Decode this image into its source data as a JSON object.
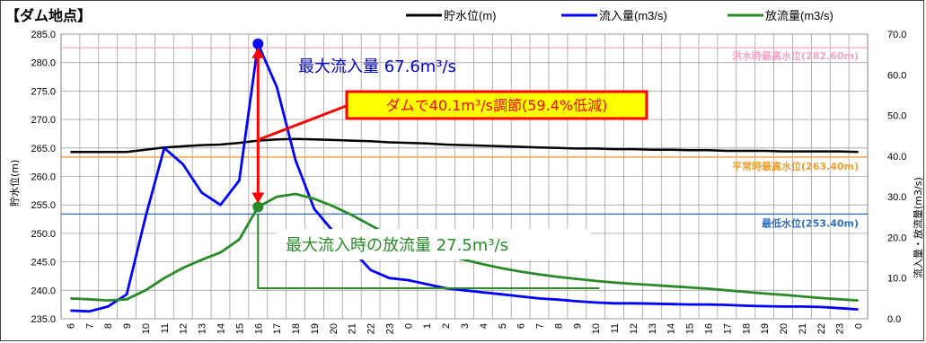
{
  "chart_data": {
    "type": "line",
    "title": "【ダム地点】",
    "ylabel_left": "貯水位(m)",
    "ylabel_right": "流入量・放流量(m3/s)",
    "ylim_left": [
      235.0,
      285.0
    ],
    "ylim_right": [
      0.0,
      70.0
    ],
    "yticks_left": [
      "235.0",
      "240.0",
      "245.0",
      "250.0",
      "255.0",
      "260.0",
      "265.0",
      "270.0",
      "275.0",
      "280.0",
      "285.0"
    ],
    "yticks_right": [
      "0.0",
      "10.0",
      "20.0",
      "30.0",
      "40.0",
      "50.0",
      "60.0",
      "70.0"
    ],
    "categories": [
      "6",
      "7",
      "8",
      "9",
      "10",
      "11",
      "12",
      "13",
      "14",
      "15",
      "16",
      "17",
      "18",
      "19",
      "20",
      "21",
      "22",
      "23",
      "0",
      "1",
      "2",
      "3",
      "4",
      "5",
      "6",
      "7",
      "8",
      "9",
      "10",
      "11",
      "12",
      "13",
      "14",
      "15",
      "16",
      "17",
      "18",
      "19",
      "20",
      "21",
      "22",
      "23",
      "0"
    ],
    "grid": true,
    "legend_position": "top",
    "series": [
      {
        "name": "貯水位(m)",
        "axis": "left",
        "color": "#000000",
        "values": [
          264.3,
          264.3,
          264.3,
          264.3,
          264.7,
          265.1,
          265.3,
          265.5,
          265.6,
          265.9,
          266.3,
          266.5,
          266.6,
          266.5,
          266.4,
          266.3,
          266.2,
          266.0,
          265.9,
          265.8,
          265.6,
          265.5,
          265.4,
          265.3,
          265.2,
          265.1,
          265.0,
          264.9,
          264.9,
          264.8,
          264.8,
          264.7,
          264.7,
          264.6,
          264.6,
          264.5,
          264.5,
          264.5,
          264.4,
          264.4,
          264.4,
          264.4,
          264.3
        ]
      },
      {
        "name": "流入量(m3/s)",
        "axis": "right",
        "color": "#0000ff",
        "values": [
          2.0,
          1.8,
          3.0,
          6.0,
          25.0,
          42.0,
          38.0,
          31.0,
          28.0,
          34.0,
          67.6,
          57.0,
          39.0,
          27.0,
          21.5,
          17.0,
          12.0,
          10.0,
          9.5,
          8.5,
          7.5,
          7.0,
          6.5,
          6.0,
          5.5,
          5.0,
          4.7,
          4.3,
          4.0,
          3.8,
          3.8,
          3.7,
          3.6,
          3.5,
          3.5,
          3.4,
          3.2,
          3.1,
          3.0,
          3.0,
          2.9,
          2.6,
          2.3
        ]
      },
      {
        "name": "放流量(m3/s)",
        "axis": "right",
        "color": "#2a8a2a",
        "values": [
          5.0,
          4.8,
          4.5,
          4.8,
          7.0,
          10.0,
          12.5,
          14.5,
          16.3,
          19.5,
          27.5,
          30.0,
          30.7,
          29.5,
          27.7,
          25.5,
          23.0,
          20.5,
          18.6,
          17.0,
          15.7,
          14.5,
          13.4,
          12.4,
          11.6,
          10.9,
          10.3,
          9.8,
          9.3,
          8.9,
          8.6,
          8.3,
          8.0,
          7.7,
          7.4,
          7.0,
          6.6,
          6.2,
          5.9,
          5.5,
          5.1,
          4.8,
          4.5
        ]
      }
    ],
    "reference_lines": [
      {
        "label": "洪水時最高水位(282.60m)",
        "value": 282.6,
        "color": "#f4a6c8"
      },
      {
        "label": "平常時最高水位(263.40m)",
        "value": 263.4,
        "color": "#f0a030"
      },
      {
        "label": "最低水位(253.40m)",
        "value": 253.4,
        "color": "#3070c0"
      }
    ],
    "annotations": {
      "max_inflow": "最大流入量 67.6m³/s",
      "regulation": "ダムで40.1m³/s調節(59.4%低減)",
      "outflow_at_max": "最大流入時の放流量 27.5m³/s"
    },
    "colors": {
      "annotation_red": "#ff0000",
      "annotation_box_fill": "#ffff00",
      "max_inflow_text": "#0000c0",
      "outflow_text": "#2a8a2a"
    }
  }
}
